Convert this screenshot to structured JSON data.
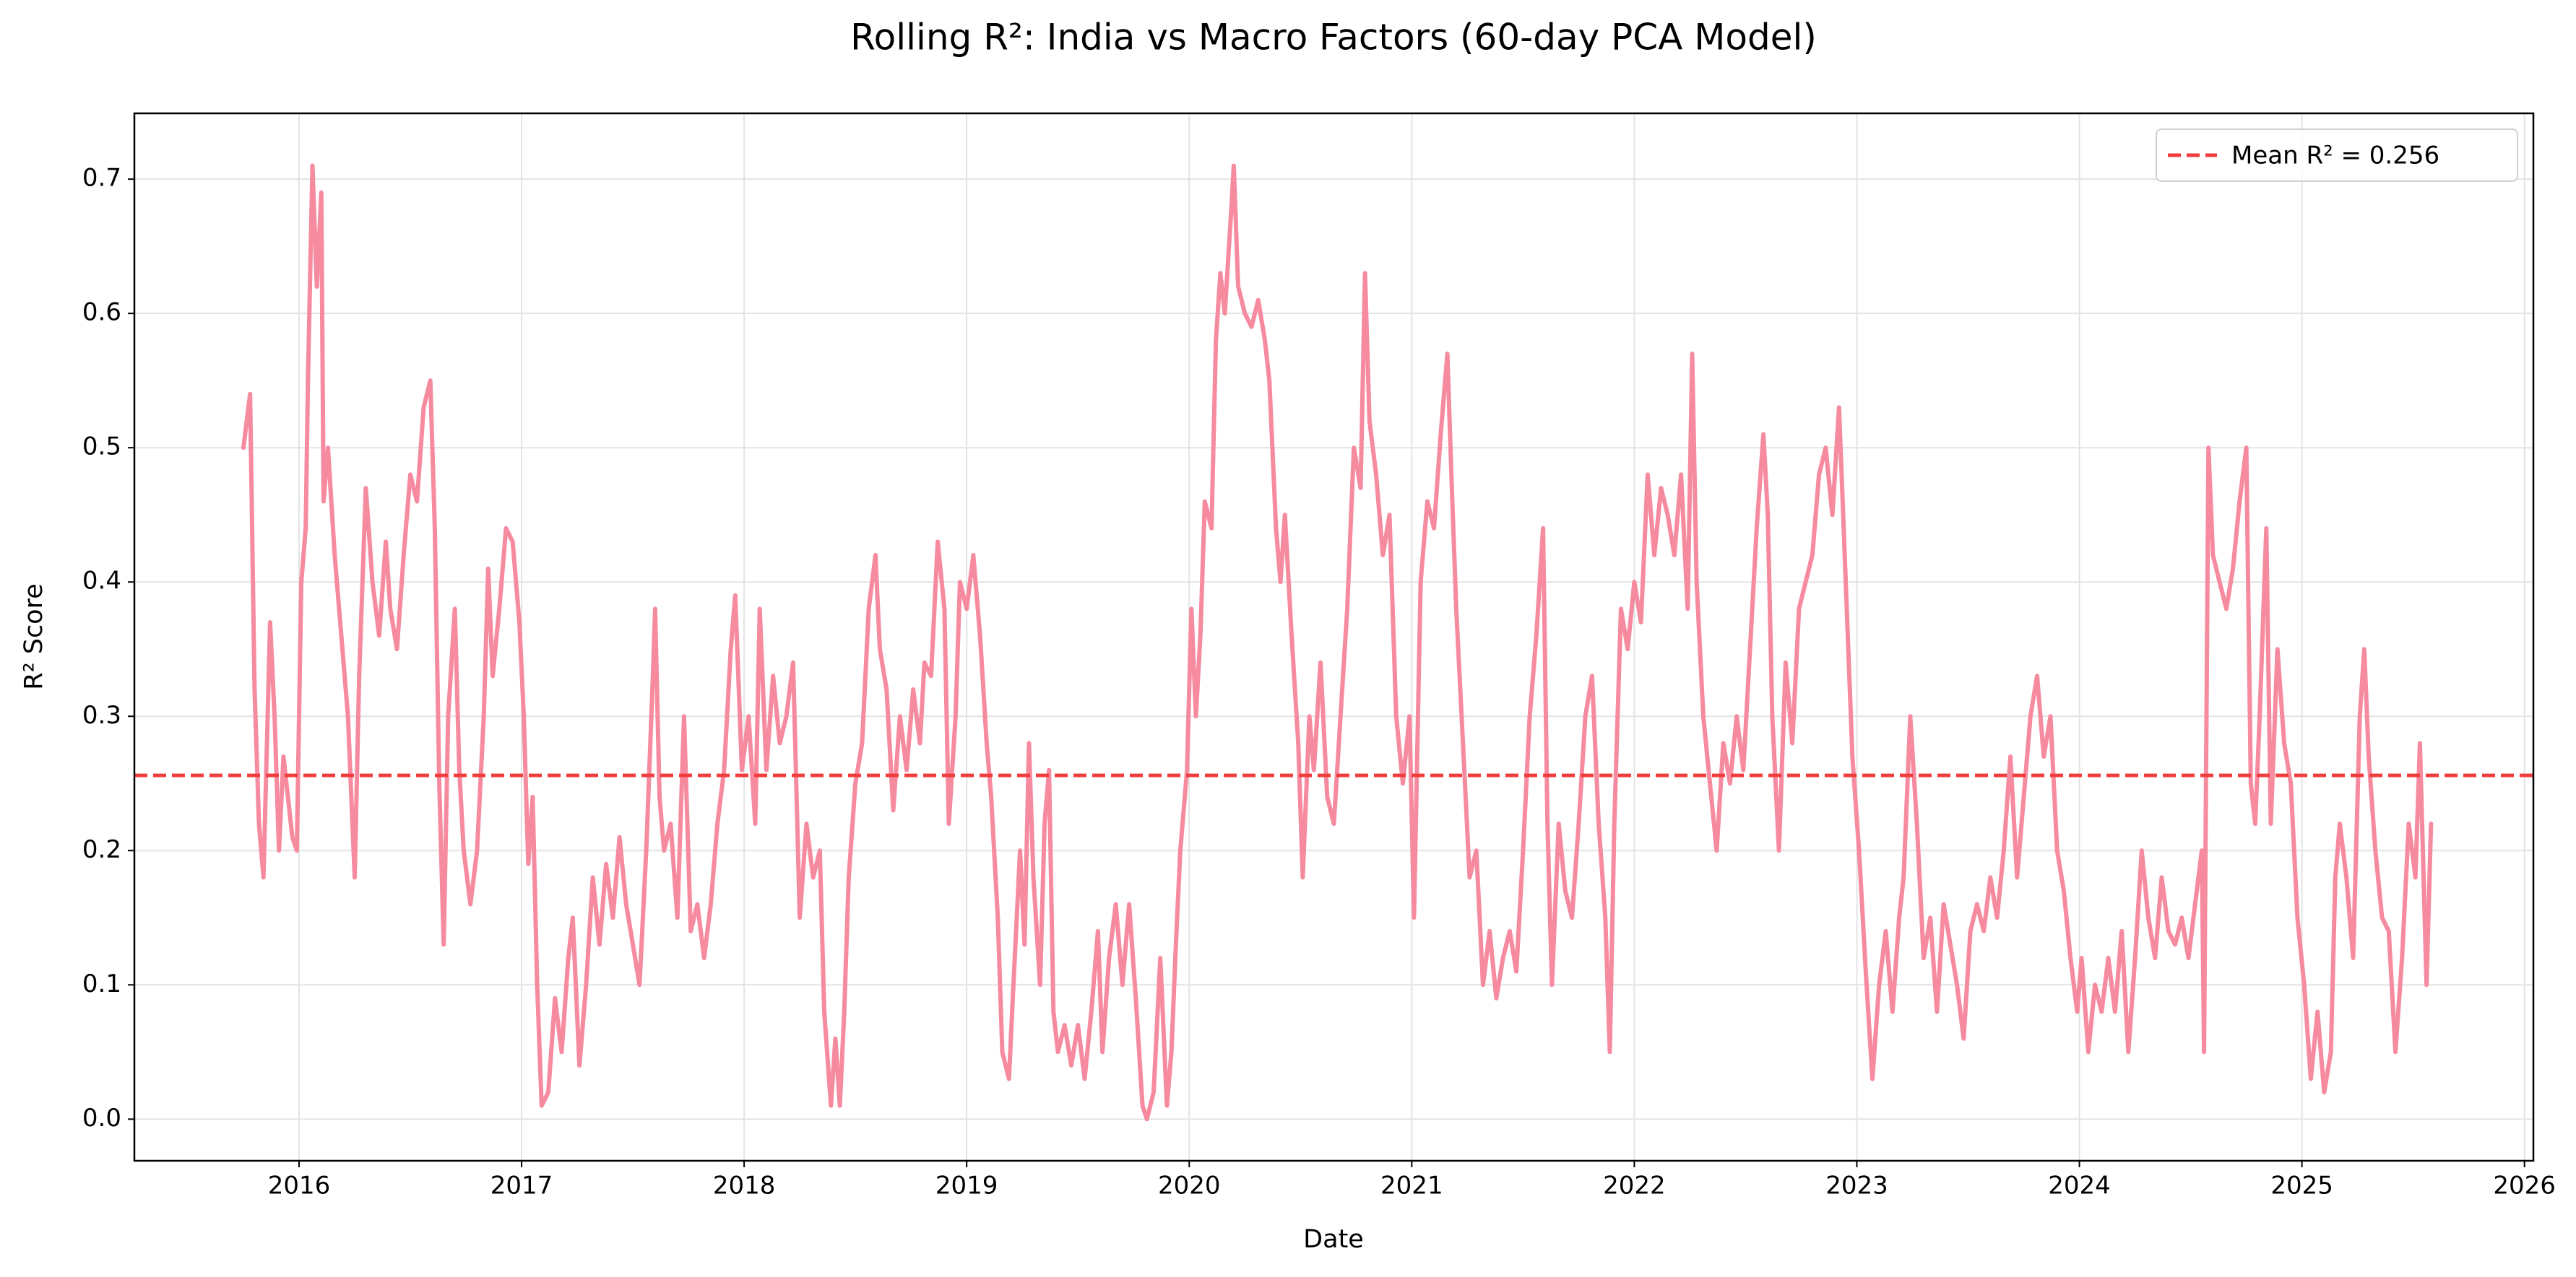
{
  "chart_data": {
    "type": "line",
    "title": "Rolling R²: India vs Macro Factors (60-day PCA Model)",
    "x_label": "Date",
    "y_label": "R² Score",
    "color": "#f68a9f",
    "grid": true,
    "legend": "upper right",
    "mean_line": {
      "value": 0.256,
      "label": "Mean R² = 0.256",
      "color": "#f03c3c"
    },
    "xlim": [
      2015.26,
      2026.04
    ],
    "ylim": [
      -0.031,
      0.749
    ],
    "xticks": [
      2016,
      2017,
      2018,
      2019,
      2020,
      2021,
      2022,
      2023,
      2024,
      2025,
      2026
    ],
    "yticks": [
      {
        "value": 0,
        "label": "0.0"
      },
      0.1,
      0.2,
      0.3,
      0.4,
      0.5,
      0.6,
      0.7
    ],
    "x": [
      2015.75,
      2015.78,
      2015.8,
      2015.82,
      2015.84,
      2015.87,
      2015.89,
      2015.91,
      2015.93,
      2015.97,
      2015.99,
      2016.01,
      2016.03,
      2016.04,
      2016.06,
      2016.08,
      2016.1,
      2016.11,
      2016.13,
      2016.16,
      2016.19,
      2016.22,
      2016.25,
      2016.27,
      2016.3,
      2016.33,
      2016.36,
      2016.39,
      2016.41,
      2016.44,
      2016.47,
      2016.5,
      2016.53,
      2016.56,
      2016.59,
      2016.61,
      2016.63,
      2016.65,
      2016.67,
      2016.7,
      2016.72,
      2016.74,
      2016.77,
      2016.8,
      2016.83,
      2016.85,
      2016.87,
      2016.9,
      2016.93,
      2016.96,
      2016.99,
      2017.01,
      2017.03,
      2017.05,
      2017.07,
      2017.09,
      2017.12,
      2017.15,
      2017.18,
      2017.21,
      2017.23,
      2017.26,
      2017.29,
      2017.32,
      2017.35,
      2017.38,
      2017.41,
      2017.44,
      2017.47,
      2017.5,
      2017.53,
      2017.56,
      2017.59,
      2017.6,
      2017.62,
      2017.64,
      2017.67,
      2017.7,
      2017.73,
      2017.76,
      2017.79,
      2017.82,
      2017.85,
      2017.88,
      2017.91,
      2017.94,
      2017.96,
      2017.99,
      2018.02,
      2018.05,
      2018.07,
      2018.1,
      2018.13,
      2018.16,
      2018.19,
      2018.22,
      2018.25,
      2018.28,
      2018.31,
      2018.34,
      2018.36,
      2018.39,
      2018.41,
      2018.43,
      2018.45,
      2018.47,
      2018.5,
      2018.53,
      2018.56,
      2018.59,
      2018.61,
      2018.64,
      2018.67,
      2018.7,
      2018.73,
      2018.76,
      2018.79,
      2018.81,
      2018.84,
      2018.87,
      2018.9,
      2018.92,
      2018.95,
      2018.97,
      2019.0,
      2019.03,
      2019.06,
      2019.09,
      2019.11,
      2019.14,
      2019.16,
      2019.19,
      2019.21,
      2019.24,
      2019.26,
      2019.28,
      2019.3,
      2019.33,
      2019.35,
      2019.37,
      2019.39,
      2019.41,
      2019.44,
      2019.47,
      2019.5,
      2019.53,
      2019.56,
      2019.59,
      2019.61,
      2019.64,
      2019.67,
      2019.7,
      2019.73,
      2019.76,
      2019.79,
      2019.81,
      2019.84,
      2019.87,
      2019.9,
      2019.92,
      2019.94,
      2019.96,
      2019.99,
      2020.01,
      2020.03,
      2020.05,
      2020.07,
      2020.1,
      2020.12,
      2020.14,
      2020.16,
      2020.19,
      2020.2,
      2020.22,
      2020.25,
      2020.28,
      2020.31,
      2020.34,
      2020.36,
      2020.39,
      2020.41,
      2020.43,
      2020.46,
      2020.49,
      2020.51,
      2020.54,
      2020.56,
      2020.59,
      2020.62,
      2020.65,
      2020.68,
      2020.71,
      2020.74,
      2020.77,
      2020.79,
      2020.81,
      2020.84,
      2020.87,
      2020.9,
      2020.93,
      2020.96,
      2020.99,
      2021.01,
      2021.04,
      2021.07,
      2021.1,
      2021.13,
      2021.16,
      2021.18,
      2021.2,
      2021.23,
      2021.26,
      2021.29,
      2021.32,
      2021.35,
      2021.38,
      2021.41,
      2021.44,
      2021.47,
      2021.5,
      2021.53,
      2021.56,
      2021.59,
      2021.61,
      2021.63,
      2021.66,
      2021.69,
      2021.72,
      2021.75,
      2021.78,
      2021.81,
      2021.84,
      2021.87,
      2021.89,
      2021.91,
      2021.94,
      2021.97,
      2022.0,
      2022.03,
      2022.06,
      2022.09,
      2022.12,
      2022.15,
      2022.18,
      2022.21,
      2022.24,
      2022.26,
      2022.28,
      2022.31,
      2022.34,
      2022.37,
      2022.4,
      2022.43,
      2022.46,
      2022.49,
      2022.52,
      2022.55,
      2022.58,
      2022.6,
      2022.62,
      2022.65,
      2022.68,
      2022.71,
      2022.74,
      2022.77,
      2022.8,
      2022.83,
      2022.86,
      2022.89,
      2022.92,
      2022.95,
      2022.98,
      2023.01,
      2023.04,
      2023.07,
      2023.1,
      2023.13,
      2023.16,
      2023.19,
      2023.21,
      2023.24,
      2023.27,
      2023.3,
      2023.33,
      2023.36,
      2023.39,
      2023.42,
      2023.45,
      2023.48,
      2023.51,
      2023.54,
      2023.57,
      2023.6,
      2023.63,
      2023.66,
      2023.69,
      2023.72,
      2023.75,
      2023.78,
      2023.81,
      2023.84,
      2023.87,
      2023.9,
      2023.93,
      2023.96,
      2023.99,
      2024.01,
      2024.04,
      2024.07,
      2024.1,
      2024.13,
      2024.16,
      2024.19,
      2024.22,
      2024.25,
      2024.28,
      2024.31,
      2024.34,
      2024.37,
      2024.4,
      2024.43,
      2024.46,
      2024.49,
      2024.52,
      2024.55,
      2024.56,
      2024.58,
      2024.6,
      2024.63,
      2024.66,
      2024.69,
      2024.72,
      2024.75,
      2024.77,
      2024.79,
      2024.81,
      2024.84,
      2024.86,
      2024.89,
      2024.92,
      2024.95,
      2024.98,
      2025.01,
      2025.04,
      2025.07,
      2025.1,
      2025.13,
      2025.15,
      2025.17,
      2025.2,
      2025.23,
      2025.26,
      2025.28,
      2025.3,
      2025.33,
      2025.36,
      2025.39,
      2025.42,
      2025.45,
      2025.48,
      2025.51,
      2025.53,
      2025.56,
      2025.58
    ],
    "values": [
      0.5,
      0.54,
      0.32,
      0.22,
      0.18,
      0.37,
      0.3,
      0.2,
      0.27,
      0.21,
      0.2,
      0.4,
      0.44,
      0.55,
      0.71,
      0.62,
      0.69,
      0.46,
      0.5,
      0.42,
      0.36,
      0.3,
      0.18,
      0.33,
      0.47,
      0.4,
      0.36,
      0.43,
      0.38,
      0.35,
      0.42,
      0.48,
      0.46,
      0.53,
      0.55,
      0.44,
      0.25,
      0.13,
      0.3,
      0.38,
      0.26,
      0.2,
      0.16,
      0.2,
      0.3,
      0.41,
      0.33,
      0.38,
      0.44,
      0.43,
      0.37,
      0.3,
      0.19,
      0.24,
      0.1,
      0.01,
      0.02,
      0.09,
      0.05,
      0.12,
      0.15,
      0.04,
      0.1,
      0.18,
      0.13,
      0.19,
      0.15,
      0.21,
      0.16,
      0.13,
      0.1,
      0.2,
      0.33,
      0.38,
      0.24,
      0.2,
      0.22,
      0.15,
      0.3,
      0.14,
      0.16,
      0.12,
      0.16,
      0.22,
      0.26,
      0.35,
      0.39,
      0.26,
      0.3,
      0.22,
      0.38,
      0.26,
      0.33,
      0.28,
      0.3,
      0.34,
      0.15,
      0.22,
      0.18,
      0.2,
      0.08,
      0.01,
      0.06,
      0.01,
      0.08,
      0.18,
      0.25,
      0.28,
      0.38,
      0.42,
      0.35,
      0.32,
      0.23,
      0.3,
      0.26,
      0.32,
      0.28,
      0.34,
      0.33,
      0.43,
      0.38,
      0.22,
      0.3,
      0.4,
      0.38,
      0.42,
      0.36,
      0.28,
      0.24,
      0.15,
      0.05,
      0.03,
      0.1,
      0.2,
      0.13,
      0.28,
      0.18,
      0.1,
      0.22,
      0.26,
      0.08,
      0.05,
      0.07,
      0.04,
      0.07,
      0.03,
      0.08,
      0.14,
      0.05,
      0.12,
      0.16,
      0.1,
      0.16,
      0.09,
      0.01,
      0.0,
      0.02,
      0.12,
      0.01,
      0.05,
      0.13,
      0.2,
      0.26,
      0.38,
      0.3,
      0.36,
      0.46,
      0.44,
      0.58,
      0.63,
      0.6,
      0.68,
      0.71,
      0.62,
      0.6,
      0.59,
      0.61,
      0.58,
      0.55,
      0.44,
      0.4,
      0.45,
      0.36,
      0.28,
      0.18,
      0.3,
      0.26,
      0.34,
      0.24,
      0.22,
      0.3,
      0.38,
      0.5,
      0.47,
      0.63,
      0.52,
      0.48,
      0.42,
      0.45,
      0.3,
      0.25,
      0.3,
      0.15,
      0.4,
      0.46,
      0.44,
      0.51,
      0.57,
      0.47,
      0.38,
      0.28,
      0.18,
      0.2,
      0.1,
      0.14,
      0.09,
      0.12,
      0.14,
      0.11,
      0.2,
      0.3,
      0.36,
      0.44,
      0.22,
      0.1,
      0.22,
      0.17,
      0.15,
      0.22,
      0.3,
      0.33,
      0.22,
      0.15,
      0.05,
      0.22,
      0.38,
      0.35,
      0.4,
      0.37,
      0.48,
      0.42,
      0.47,
      0.45,
      0.42,
      0.48,
      0.38,
      0.57,
      0.4,
      0.3,
      0.25,
      0.2,
      0.28,
      0.25,
      0.3,
      0.26,
      0.35,
      0.44,
      0.51,
      0.45,
      0.3,
      0.2,
      0.34,
      0.28,
      0.38,
      0.4,
      0.42,
      0.48,
      0.5,
      0.45,
      0.53,
      0.4,
      0.27,
      0.2,
      0.11,
      0.03,
      0.1,
      0.14,
      0.08,
      0.15,
      0.18,
      0.3,
      0.22,
      0.12,
      0.15,
      0.08,
      0.16,
      0.13,
      0.1,
      0.06,
      0.14,
      0.16,
      0.14,
      0.18,
      0.15,
      0.2,
      0.27,
      0.18,
      0.24,
      0.3,
      0.33,
      0.27,
      0.3,
      0.2,
      0.17,
      0.12,
      0.08,
      0.12,
      0.05,
      0.1,
      0.08,
      0.12,
      0.08,
      0.14,
      0.05,
      0.12,
      0.2,
      0.15,
      0.12,
      0.18,
      0.14,
      0.13,
      0.15,
      0.12,
      0.16,
      0.2,
      0.05,
      0.5,
      0.42,
      0.4,
      0.38,
      0.41,
      0.46,
      0.5,
      0.25,
      0.22,
      0.3,
      0.44,
      0.22,
      0.35,
      0.28,
      0.25,
      0.15,
      0.1,
      0.03,
      0.08,
      0.02,
      0.05,
      0.18,
      0.22,
      0.18,
      0.12,
      0.3,
      0.35,
      0.27,
      0.2,
      0.15,
      0.14,
      0.05,
      0.12,
      0.22,
      0.18,
      0.28,
      0.1,
      0.22
    ]
  }
}
